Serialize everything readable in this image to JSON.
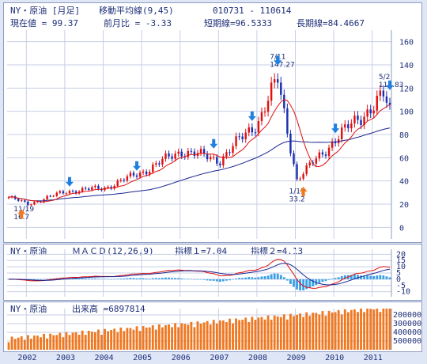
{
  "price_header": {
    "title": "NY・原油 [月足]",
    "ma_label": "移動平均線(9,45)",
    "period": "010731 - 110614",
    "current_value": "現在値 = 99.37",
    "change": "前月比 = -3.33",
    "short_ma": "短期線=96.5333",
    "long_ma": "長期線=84.4667"
  },
  "macd_header": {
    "title": "NY・原油",
    "label": "ＭＡＣＤ(12,26,9)",
    "indicator1": "指標１=7.04",
    "indicator2": "指標２=4.13"
  },
  "volume_header": {
    "title": "NY・原油",
    "label": "出来高 =6897814"
  },
  "annotations": [
    {
      "label": "11/19",
      "value": "16.7"
    },
    {
      "label": "7/11",
      "value": "147.27"
    },
    {
      "label": "1/15",
      "value": "33.2"
    },
    {
      "label": "5/2",
      "value": "114.83"
    }
  ],
  "colors": {
    "up": "#e01010",
    "down": "#1a2fb0",
    "short_ma": "#e01010",
    "long_ma": "#1a2590",
    "macd_hist": "#3aa0e6",
    "volume": "#f07820",
    "grid": "#c8cfe6",
    "signal_up": "#f07820",
    "signal_down": "#2080e0"
  },
  "chart_data": [
    {
      "type": "line",
      "subtype": "candlestick",
      "title": "NY・原油 [月足]",
      "x_axis": [
        "2002",
        "2003",
        "2004",
        "2005",
        "2006",
        "2007",
        "2008",
        "2009",
        "2010",
        "2011"
      ],
      "ylim": [
        -10,
        170
      ],
      "y_ticks": [
        0,
        20,
        40,
        60,
        80,
        100,
        120,
        140,
        160
      ],
      "close_by_year_start": [
        {
          "x": "2002-01",
          "y": 20
        },
        {
          "x": "2003-01",
          "y": 31
        },
        {
          "x": "2004-01",
          "y": 34
        },
        {
          "x": "2005-01",
          "y": 48
        },
        {
          "x": "2006-01",
          "y": 66
        },
        {
          "x": "2007-01",
          "y": 58
        },
        {
          "x": "2008-01",
          "y": 92
        },
        {
          "x": "2008-07",
          "y": 127
        },
        {
          "x": "2009-01",
          "y": 41
        },
        {
          "x": "2010-01",
          "y": 76
        },
        {
          "x": "2011-04",
          "y": 113
        },
        {
          "x": "2011-06",
          "y": 99
        }
      ],
      "series": [
        {
          "name": "短期線",
          "last": 96.5333
        },
        {
          "name": "長期線",
          "last": 84.4667
        }
      ]
    },
    {
      "type": "line",
      "title": "ＭＡＣＤ(12,26,9)",
      "ylim": [
        -14,
        24
      ],
      "y_ticks": [
        -10,
        -5,
        0,
        5,
        10,
        15,
        20
      ],
      "series": [
        {
          "name": "指標１",
          "last": 7.04
        },
        {
          "name": "指標２",
          "last": 4.13
        }
      ]
    },
    {
      "type": "bar",
      "title": "出来高",
      "y_ticks": [
        200000,
        300000,
        400000,
        500000
      ],
      "last": 6897814
    }
  ]
}
